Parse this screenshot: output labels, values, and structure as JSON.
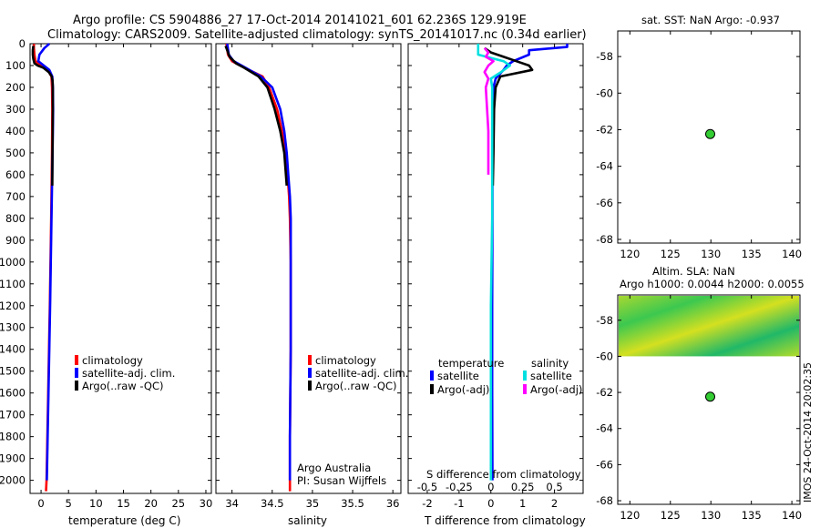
{
  "header": {
    "title_line1": "Argo profile: CS 5904886_27 17-Oct-2014 20141021_601 62.236S 129.919E",
    "title_line2": "Climatology: CARS2009. Satellite-adjusted climatology: synTS_20141017.nc (0.34d earlier)"
  },
  "credits": {
    "org": "Argo Australia",
    "pi": "PI: Susan Wijffels",
    "stamp": "IMOS 24-Oct-2014 20:02:35"
  },
  "colors": {
    "climatology": "#ff0000",
    "satellite": "#0000ff",
    "argo": "#000000",
    "sal_satellite": "#00e0e0",
    "sal_argo": "#ff00ff",
    "marker": "#33cc33"
  },
  "chart_data": [
    {
      "id": "temperature",
      "type": "line",
      "xlabel": "temperature (deg C)",
      "ylabel": "",
      "xlim": [
        -2,
        31
      ],
      "ylim": [
        0,
        2060
      ],
      "y_reversed": true,
      "xticks": [
        0,
        5,
        10,
        15,
        20,
        25,
        30
      ],
      "yticks": [
        0,
        100,
        200,
        300,
        400,
        500,
        600,
        700,
        800,
        900,
        1000,
        1100,
        1200,
        1300,
        1400,
        1500,
        1600,
        1700,
        1800,
        1900,
        2000
      ],
      "legend": [
        "climatology",
        "satellite-adj. clim.",
        "Argo(..raw -QC)"
      ],
      "series": [
        {
          "name": "climatology",
          "color": "#ff0000",
          "depth": [
            0,
            20,
            50,
            80,
            100,
            120,
            150,
            200,
            300,
            500,
            800,
            1200,
            1600,
            2000,
            2050
          ],
          "values": [
            -1.3,
            -1.3,
            -1.2,
            -1.0,
            0.0,
            1.2,
            1.9,
            2.0,
            2.05,
            2.0,
            1.85,
            1.6,
            1.3,
            1.0,
            0.9
          ]
        },
        {
          "name": "satellite-adj. clim.",
          "color": "#0000ff",
          "depth": [
            0,
            5,
            20,
            30,
            50,
            80,
            100,
            120,
            150,
            200,
            300,
            500,
            800,
            1200,
            1600,
            2000
          ],
          "values": [
            1.5,
            1.3,
            0.6,
            0.3,
            -0.3,
            -0.5,
            0.5,
            1.5,
            2.05,
            2.15,
            2.2,
            2.1,
            1.9,
            1.65,
            1.35,
            1.05
          ]
        },
        {
          "name": "Argo(..raw -QC)",
          "color": "#000000",
          "depth": [
            10,
            30,
            50,
            70,
            90,
            100,
            110,
            130,
            150,
            170,
            200,
            300,
            400,
            500,
            650
          ],
          "values": [
            -1.4,
            -1.5,
            -1.5,
            -1.4,
            -1.2,
            -0.6,
            0.4,
            1.4,
            1.95,
            2.1,
            2.15,
            2.15,
            2.12,
            2.08,
            2.05
          ]
        }
      ]
    },
    {
      "id": "salinity",
      "type": "line",
      "xlabel": "salinity",
      "ylabel": "",
      "xlim": [
        33.8,
        36.1
      ],
      "ylim": [
        0,
        2060
      ],
      "y_reversed": true,
      "xticks": [
        34,
        34.5,
        35,
        35.5,
        36
      ],
      "xtick_labels": [
        "34",
        "34.5",
        "35",
        "35.5",
        "36"
      ],
      "legend": [
        "climatology",
        "satellite-adj. clim.",
        "Argo(..raw -QC)"
      ],
      "series": [
        {
          "name": "climatology",
          "color": "#ff0000",
          "depth": [
            0,
            50,
            80,
            100,
            150,
            200,
            300,
            400,
            500,
            600,
            700,
            800,
            1000,
            1400,
            1800,
            2050
          ],
          "values": [
            33.93,
            33.95,
            34.0,
            34.1,
            34.38,
            34.46,
            34.56,
            34.62,
            34.66,
            34.69,
            34.71,
            34.72,
            34.73,
            34.73,
            34.72,
            34.72
          ]
        },
        {
          "name": "satellite-adj. clim.",
          "color": "#0000ff",
          "depth": [
            0,
            50,
            80,
            100,
            150,
            200,
            300,
            400,
            500,
            600,
            700,
            800,
            1000,
            1400,
            1800,
            2000
          ],
          "values": [
            33.94,
            33.96,
            34.02,
            34.12,
            34.36,
            34.5,
            34.6,
            34.65,
            34.68,
            34.7,
            34.72,
            34.73,
            34.73,
            34.73,
            34.72,
            34.72
          ]
        },
        {
          "name": "Argo(..raw -QC)",
          "color": "#000000",
          "depth": [
            10,
            30,
            60,
            90,
            110,
            150,
            200,
            300,
            400,
            500,
            650
          ],
          "values": [
            33.92,
            33.94,
            33.97,
            34.05,
            34.15,
            34.33,
            34.44,
            34.53,
            34.6,
            34.65,
            34.68
          ]
        }
      ]
    },
    {
      "id": "difference",
      "type": "line",
      "xlabel": "T difference from climatology",
      "x2label": "S difference from climatology",
      "xlim": [
        -2.6,
        2.9
      ],
      "x2lim": [
        -0.65,
        0.725
      ],
      "ylim": [
        0,
        2060
      ],
      "y_reversed": true,
      "xticks": [
        -2,
        -1,
        0,
        1,
        2
      ],
      "x2ticks": [
        -0.5,
        -0.25,
        0,
        0.25,
        0.5
      ],
      "x2tick_labels": [
        "-0.5",
        "-0.25",
        "0",
        "0.25",
        "0.5"
      ],
      "legend_titles": [
        "temperature",
        "salinity"
      ],
      "legend": [
        "satellite",
        "Argo(-adj)",
        "satellite",
        "Argo(-adj)"
      ],
      "series": [
        {
          "name": "T satellite",
          "color": "#0000ff",
          "depth": [
            0,
            15,
            30,
            50,
            80,
            100,
            120,
            160,
            200,
            300,
            500,
            800,
            1200,
            1600,
            2000
          ],
          "values": [
            2.4,
            2.4,
            1.2,
            1.2,
            0.7,
            0.5,
            0.4,
            0.15,
            0.08,
            0.06,
            0.05,
            0.05,
            0.04,
            0.04,
            0.05
          ]
        },
        {
          "name": "T Argo(-adj)",
          "color": "#000000",
          "depth": [
            20,
            40,
            60,
            80,
            100,
            120,
            150,
            200,
            300,
            500,
            650
          ],
          "values": [
            -0.2,
            0.0,
            0.4,
            0.8,
            1.2,
            1.3,
            0.3,
            0.15,
            0.1,
            0.08,
            0.06
          ]
        },
        {
          "name": "S satellite",
          "color": "#00e0e0",
          "depth": [
            0,
            50,
            80,
            100,
            130,
            160,
            200,
            300,
            500,
            800,
            1200,
            1600,
            2000
          ],
          "values": [
            -0.1,
            -0.1,
            0.1,
            0.15,
            0.08,
            0.0,
            0.01,
            0.01,
            0.01,
            0.01,
            0.0,
            0.0,
            0.0
          ]
        },
        {
          "name": "S Argo(-adj)",
          "color": "#ff00ff",
          "depth": [
            20,
            40,
            60,
            80,
            100,
            130,
            160,
            200,
            300,
            400,
            500,
            600
          ],
          "values": [
            -0.05,
            -0.02,
            -0.04,
            0.02,
            -0.02,
            -0.05,
            -0.02,
            -0.04,
            -0.03,
            -0.02,
            -0.02,
            -0.02
          ]
        }
      ]
    },
    {
      "id": "sst_map",
      "type": "scatter",
      "title": "sat. SST: NaN Argo: -0.937",
      "xlim": [
        118.5,
        141
      ],
      "ylim": [
        -68.2,
        -56.6
      ],
      "xticks": [
        120,
        125,
        130,
        135,
        140
      ],
      "yticks": [
        -58,
        -60,
        -62,
        -64,
        -66,
        -68
      ],
      "points": [
        {
          "lon": 129.919,
          "lat": -62.236
        }
      ]
    },
    {
      "id": "sla_map",
      "type": "heatmap",
      "title": "Altim. SLA: NaN",
      "subtitle": "Argo h1000: 0.0044 h2000: 0.0055",
      "xlim": [
        118.5,
        141
      ],
      "ylim": [
        -68.2,
        -56.6
      ],
      "xticks": [
        120,
        125,
        130,
        135,
        140
      ],
      "yticks": [
        -58,
        -60,
        -62,
        -64,
        -66,
        -68
      ],
      "heatmap_lat_range": [
        -60,
        -56.6
      ],
      "points": [
        {
          "lon": 129.919,
          "lat": -62.236
        }
      ]
    }
  ]
}
